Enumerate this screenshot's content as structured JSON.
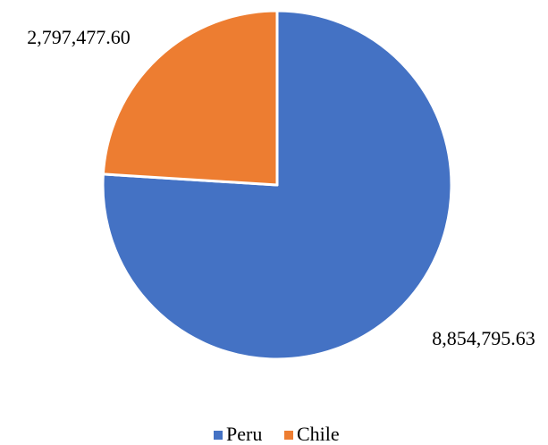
{
  "chart_data": {
    "type": "pie",
    "categories": [
      "Peru",
      "Chile"
    ],
    "values": [
      8854795.63,
      2797477.6
    ],
    "value_labels": [
      "8,854,795.63",
      "2,797,477.60"
    ],
    "colors": [
      "#4472c4",
      "#ed7d31"
    ],
    "legend": "bottom"
  }
}
